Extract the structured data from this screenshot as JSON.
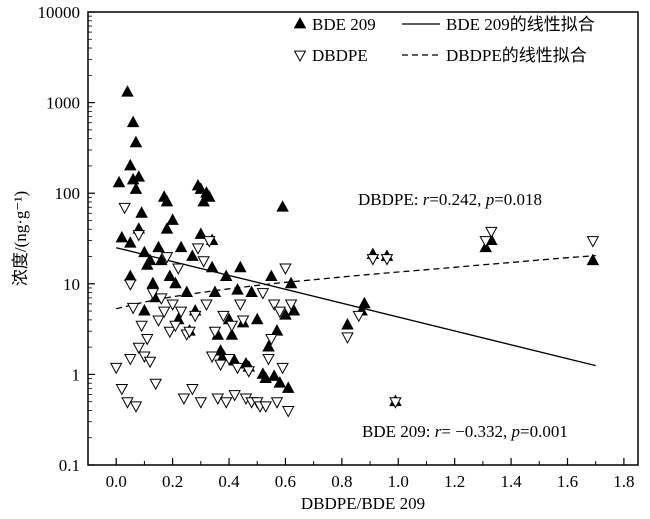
{
  "chart_data": {
    "type": "scatter",
    "xlabel": "DBDPE/BDE 209",
    "ylabel": "浓度/(ng·g⁻¹)",
    "xlim": [
      -0.1,
      1.85
    ],
    "ylim": [
      0.1,
      10000
    ],
    "yscale": "log",
    "xticks": [
      "0.0",
      "0.2",
      "0.4",
      "0.6",
      "0.8",
      "1.0",
      "1.2",
      "1.4",
      "1.6",
      "1.8"
    ],
    "yticks": [
      "0.1",
      "1",
      "10",
      "100",
      "1000",
      "10000"
    ],
    "legend": {
      "placement": "top-right",
      "entries": [
        "BDE 209",
        "BDE 209的线性拟合",
        "DBDPE",
        "DBDPE的线性拟合"
      ]
    },
    "annotations": [
      {
        "name": "DBDPE",
        "label": "DBDPE: ",
        "r_label": "r",
        "r_value": "=0.242, ",
        "p_label": "p",
        "p_value": "=0.018"
      },
      {
        "name": "BDE 209",
        "label": "BDE 209: ",
        "r_label": "r",
        "r_value": "= −0.332, ",
        "p_label": "p",
        "p_value": "=0.001"
      }
    ],
    "series": [
      {
        "name": "BDE 209",
        "marker": "triangle-up-filled",
        "color": "#000000",
        "points": [
          [
            0.01,
            130
          ],
          [
            0.02,
            32
          ],
          [
            0.04,
            1300
          ],
          [
            0.05,
            200
          ],
          [
            0.05,
            28
          ],
          [
            0.05,
            12
          ],
          [
            0.06,
            600
          ],
          [
            0.06,
            140
          ],
          [
            0.07,
            360
          ],
          [
            0.07,
            110
          ],
          [
            0.08,
            150
          ],
          [
            0.08,
            40
          ],
          [
            0.09,
            60
          ],
          [
            0.1,
            22
          ],
          [
            0.1,
            5
          ],
          [
            0.11,
            16
          ],
          [
            0.12,
            18
          ],
          [
            0.13,
            10
          ],
          [
            0.14,
            7
          ],
          [
            0.15,
            25
          ],
          [
            0.16,
            18
          ],
          [
            0.17,
            90
          ],
          [
            0.18,
            80
          ],
          [
            0.18,
            40
          ],
          [
            0.19,
            12
          ],
          [
            0.2,
            50
          ],
          [
            0.21,
            10
          ],
          [
            0.22,
            4
          ],
          [
            0.23,
            25
          ],
          [
            0.25,
            8
          ],
          [
            0.26,
            3
          ],
          [
            0.27,
            20
          ],
          [
            0.28,
            5
          ],
          [
            0.29,
            120
          ],
          [
            0.3,
            110
          ],
          [
            0.3,
            35
          ],
          [
            0.31,
            80
          ],
          [
            0.32,
            100
          ],
          [
            0.33,
            90
          ],
          [
            0.34,
            15
          ],
          [
            0.34,
            30
          ],
          [
            0.35,
            8
          ],
          [
            0.36,
            2.7
          ],
          [
            0.37,
            1.8
          ],
          [
            0.38,
            1.6
          ],
          [
            0.39,
            12
          ],
          [
            0.4,
            4
          ],
          [
            0.41,
            2.7
          ],
          [
            0.42,
            1.4
          ],
          [
            0.43,
            8.5
          ],
          [
            0.44,
            15
          ],
          [
            0.45,
            3.7
          ],
          [
            0.46,
            1.3
          ],
          [
            0.47,
            1.2
          ],
          [
            0.48,
            8
          ],
          [
            0.5,
            4
          ],
          [
            0.52,
            1.0
          ],
          [
            0.53,
            0.9
          ],
          [
            0.54,
            2
          ],
          [
            0.55,
            12
          ],
          [
            0.56,
            0.95
          ],
          [
            0.57,
            3
          ],
          [
            0.58,
            0.8
          ],
          [
            0.59,
            70
          ],
          [
            0.6,
            4.5
          ],
          [
            0.61,
            0.7
          ],
          [
            0.62,
            10
          ],
          [
            0.63,
            5
          ],
          [
            0.82,
            3.5
          ],
          [
            0.87,
            5
          ],
          [
            0.88,
            6
          ],
          [
            0.91,
            21
          ],
          [
            0.96,
            20
          ],
          [
            0.99,
            0.5
          ],
          [
            1.31,
            25
          ],
          [
            1.33,
            30
          ],
          [
            1.69,
            18
          ]
        ]
      },
      {
        "name": "DBDPE",
        "marker": "triangle-down-open",
        "color": "#000000",
        "points": [
          [
            0.0,
            1.2
          ],
          [
            0.02,
            0.7
          ],
          [
            0.03,
            70
          ],
          [
            0.04,
            0.5
          ],
          [
            0.05,
            1.5
          ],
          [
            0.05,
            10
          ],
          [
            0.06,
            5.5
          ],
          [
            0.07,
            0.45
          ],
          [
            0.08,
            2
          ],
          [
            0.08,
            35
          ],
          [
            0.09,
            3.5
          ],
          [
            0.1,
            1.6
          ],
          [
            0.11,
            2.5
          ],
          [
            0.12,
            1.4
          ],
          [
            0.13,
            8
          ],
          [
            0.14,
            0.8
          ],
          [
            0.15,
            4
          ],
          [
            0.16,
            7
          ],
          [
            0.17,
            5
          ],
          [
            0.18,
            20
          ],
          [
            0.19,
            3
          ],
          [
            0.2,
            6
          ],
          [
            0.21,
            3.5
          ],
          [
            0.22,
            15
          ],
          [
            0.23,
            5
          ],
          [
            0.24,
            0.55
          ],
          [
            0.25,
            2.8
          ],
          [
            0.26,
            3
          ],
          [
            0.27,
            0.7
          ],
          [
            0.28,
            4.5
          ],
          [
            0.29,
            25
          ],
          [
            0.3,
            0.5
          ],
          [
            0.31,
            18
          ],
          [
            0.32,
            6
          ],
          [
            0.33,
            30
          ],
          [
            0.34,
            1.6
          ],
          [
            0.35,
            3
          ],
          [
            0.36,
            0.55
          ],
          [
            0.37,
            1.3
          ],
          [
            0.38,
            4.5
          ],
          [
            0.39,
            0.5
          ],
          [
            0.4,
            1.5
          ],
          [
            0.41,
            3.5
          ],
          [
            0.42,
            0.6
          ],
          [
            0.43,
            1.2
          ],
          [
            0.44,
            6
          ],
          [
            0.45,
            4
          ],
          [
            0.46,
            0.55
          ],
          [
            0.47,
            1.1
          ],
          [
            0.48,
            0.5
          ],
          [
            0.5,
            0.5
          ],
          [
            0.51,
            0.45
          ],
          [
            0.52,
            8
          ],
          [
            0.53,
            0.45
          ],
          [
            0.54,
            1.5
          ],
          [
            0.55,
            2.5
          ],
          [
            0.56,
            6
          ],
          [
            0.57,
            0.5
          ],
          [
            0.58,
            5
          ],
          [
            0.59,
            1.2
          ],
          [
            0.6,
            15
          ],
          [
            0.61,
            0.4
          ],
          [
            0.62,
            6
          ],
          [
            0.82,
            2.6
          ],
          [
            0.86,
            4.5
          ],
          [
            0.91,
            19
          ],
          [
            0.96,
            19
          ],
          [
            0.99,
            0.5
          ],
          [
            1.31,
            30
          ],
          [
            1.33,
            38
          ],
          [
            1.69,
            30
          ]
        ]
      }
    ],
    "fits": [
      {
        "name": "BDE 209的线性拟合",
        "style": "solid",
        "x": [
          0.0,
          1.7
        ],
        "y": [
          25,
          1.25
        ]
      },
      {
        "name": "DBDPE的线性拟合",
        "style": "dashed",
        "x": [
          0.0,
          0.1,
          0.2,
          0.3,
          0.4,
          0.5,
          0.6,
          0.7,
          0.8,
          0.9,
          1.0,
          1.1,
          1.2,
          1.3,
          1.4,
          1.5,
          1.6,
          1.7
        ],
        "y": [
          5.3,
          6.3,
          7.2,
          8.0,
          8.8,
          9.6,
          10.4,
          11.1,
          11.9,
          12.7,
          13.5,
          14.3,
          15.2,
          16.2,
          17.2,
          18.3,
          19.4,
          20.5
        ]
      }
    ]
  }
}
